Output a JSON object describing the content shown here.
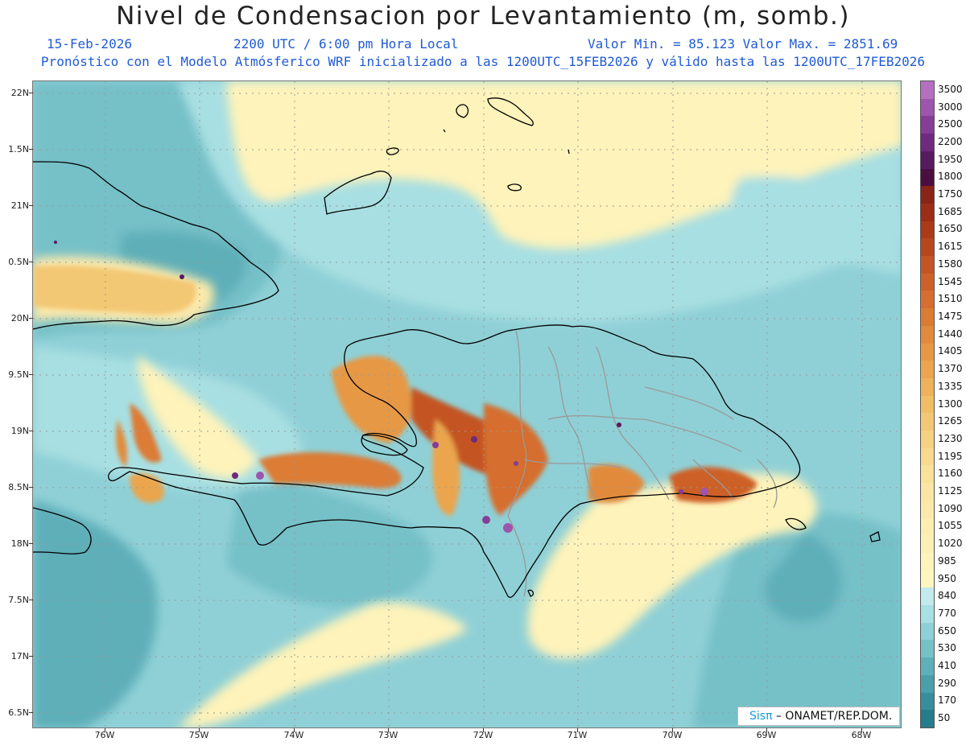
{
  "header": {
    "title": "Nivel de Condensacion por Levantamiento (m, somb.)",
    "date": "15-Feb-2026",
    "time": "2200 UTC / 6:00 pm Hora Local",
    "minmax": "Valor Min. = 85.123  Valor Max. = 2851.69",
    "model_line": "Pronóstico con el Modelo Atmósferico WRF inicializado a las 1200UTC_15FEB2026 y válido hasta las  1200UTC_17FEB2026"
  },
  "axes": {
    "lat_labels": [
      "22N",
      "1.5N",
      "21N",
      "0.5N",
      "20N",
      "9.5N",
      "19N",
      "8.5N",
      "18N",
      "7.5N",
      "17N",
      "6.5N"
    ],
    "lon_labels": [
      "76W",
      "75W",
      "74W",
      "73W",
      "72W",
      "71W",
      "70W",
      "69W",
      "68W"
    ]
  },
  "colorbar": {
    "labels": [
      "3500",
      "3000",
      "2500",
      "2200",
      "1950",
      "1800",
      "1750",
      "1685",
      "1650",
      "1615",
      "1580",
      "1545",
      "1510",
      "1475",
      "1440",
      "1405",
      "1370",
      "1335",
      "1300",
      "1265",
      "1230",
      "1195",
      "1160",
      "1125",
      "1090",
      "1055",
      "1020",
      "985",
      "950",
      "840",
      "770",
      "650",
      "530",
      "410",
      "290",
      "170",
      "50"
    ],
    "colors": [
      "#b56fc0",
      "#9d55ad",
      "#853d95",
      "#6e2a7c",
      "#571b60",
      "#4a0f3e",
      "#8a2418",
      "#9c2d17",
      "#ab3a19",
      "#b9471d",
      "#c45423",
      "#cd6128",
      "#d56e2e",
      "#dc7c34",
      "#e28a3b",
      "#e69844",
      "#eaa54e",
      "#eeb25a",
      "#f1be67",
      "#f3c874",
      "#f5d182",
      "#f7d98f",
      "#f9e09b",
      "#fae5a4",
      "#fbe9ab",
      "#fcedb0",
      "#fdf0b5",
      "#fef3ba",
      "#fef5bf",
      "#c3eaec",
      "#a8dfe2",
      "#8fd0d6",
      "#76c0c8",
      "#5eafb9",
      "#4a9fab",
      "#378e9c",
      "#257c8b"
    ]
  },
  "credit": {
    "sis": "Sisπ",
    "text": "– ONAMET/REP.DOM."
  },
  "colors": {
    "title": "#222222",
    "subtitle": "#1f5bd6",
    "ocean": "#8fd0d6",
    "coast": "#000000",
    "province": "#9a9a9a"
  }
}
